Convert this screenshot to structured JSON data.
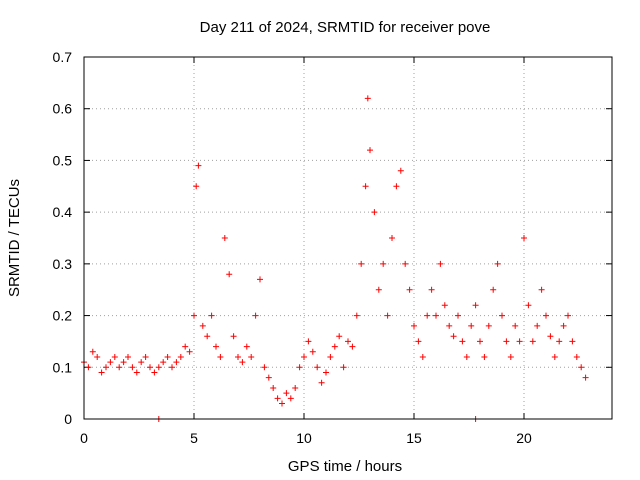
{
  "chart_data": {
    "type": "scatter",
    "title": "Day 211 of 2024, SRMTID for receiver pove",
    "xlabel": "GPS time / hours",
    "ylabel": "SRMTID / TECUs",
    "xlim": [
      0,
      24
    ],
    "ylim": [
      0,
      0.7
    ],
    "xticks": [
      0,
      5,
      10,
      15,
      20
    ],
    "xtick_labels": [
      "0",
      "5",
      "10",
      "15",
      "20"
    ],
    "yticks": [
      0,
      0.1,
      0.2,
      0.3,
      0.4,
      0.5,
      0.6,
      0.7
    ],
    "ytick_labels": [
      "0",
      "0.1",
      "0.2",
      "0.3",
      "0.4",
      "0.5",
      "0.6",
      "0.7"
    ],
    "grid": true,
    "marker": "+",
    "series": [
      {
        "name": "SRMTID",
        "color": "#ff0000",
        "x": [
          0.0,
          0.2,
          0.4,
          0.6,
          0.8,
          1.0,
          1.2,
          1.4,
          1.6,
          1.8,
          2.0,
          2.2,
          2.4,
          2.6,
          2.8,
          3.0,
          3.2,
          3.4,
          3.6,
          3.8,
          4.0,
          4.2,
          4.4,
          4.6,
          4.8,
          5.0,
          5.1,
          5.2,
          5.4,
          5.6,
          5.8,
          6.0,
          6.2,
          6.4,
          6.6,
          6.8,
          7.0,
          7.2,
          7.4,
          7.6,
          7.8,
          8.0,
          8.2,
          8.4,
          8.6,
          8.8,
          9.0,
          9.2,
          9.4,
          9.6,
          9.8,
          10.0,
          10.2,
          10.4,
          10.6,
          10.8,
          11.0,
          11.2,
          11.4,
          11.6,
          11.8,
          12.0,
          12.2,
          12.4,
          12.6,
          12.8,
          12.9,
          13.0,
          13.2,
          13.4,
          13.6,
          13.8,
          14.0,
          14.2,
          14.4,
          14.6,
          14.8,
          15.0,
          15.2,
          15.4,
          15.6,
          15.8,
          16.0,
          16.2,
          16.4,
          16.6,
          16.8,
          17.0,
          17.2,
          17.4,
          17.6,
          17.8,
          18.0,
          18.2,
          18.4,
          18.6,
          18.8,
          19.0,
          19.2,
          19.4,
          19.6,
          19.8,
          20.0,
          20.2,
          20.4,
          20.6,
          20.8,
          21.0,
          21.2,
          21.4,
          21.6,
          21.8,
          22.0,
          22.2,
          22.4,
          22.6,
          22.8,
          3.4,
          17.8
        ],
        "y": [
          0.11,
          0.1,
          0.13,
          0.12,
          0.09,
          0.1,
          0.11,
          0.12,
          0.1,
          0.11,
          0.12,
          0.1,
          0.09,
          0.11,
          0.12,
          0.1,
          0.09,
          0.1,
          0.11,
          0.12,
          0.1,
          0.11,
          0.12,
          0.14,
          0.13,
          0.2,
          0.45,
          0.49,
          0.18,
          0.16,
          0.2,
          0.14,
          0.12,
          0.35,
          0.28,
          0.16,
          0.12,
          0.11,
          0.14,
          0.12,
          0.2,
          0.27,
          0.1,
          0.08,
          0.06,
          0.04,
          0.03,
          0.05,
          0.04,
          0.06,
          0.1,
          0.12,
          0.15,
          0.13,
          0.1,
          0.07,
          0.09,
          0.12,
          0.14,
          0.16,
          0.1,
          0.15,
          0.14,
          0.2,
          0.3,
          0.45,
          0.62,
          0.52,
          0.4,
          0.25,
          0.3,
          0.2,
          0.35,
          0.45,
          0.48,
          0.3,
          0.25,
          0.18,
          0.15,
          0.12,
          0.2,
          0.25,
          0.2,
          0.3,
          0.22,
          0.18,
          0.16,
          0.2,
          0.15,
          0.12,
          0.18,
          0.22,
          0.15,
          0.12,
          0.18,
          0.25,
          0.3,
          0.2,
          0.15,
          0.12,
          0.18,
          0.15,
          0.35,
          0.22,
          0.15,
          0.18,
          0.25,
          0.2,
          0.16,
          0.12,
          0.15,
          0.18,
          0.2,
          0.15,
          0.12,
          0.1,
          0.08,
          0.0,
          0.0
        ]
      }
    ]
  }
}
